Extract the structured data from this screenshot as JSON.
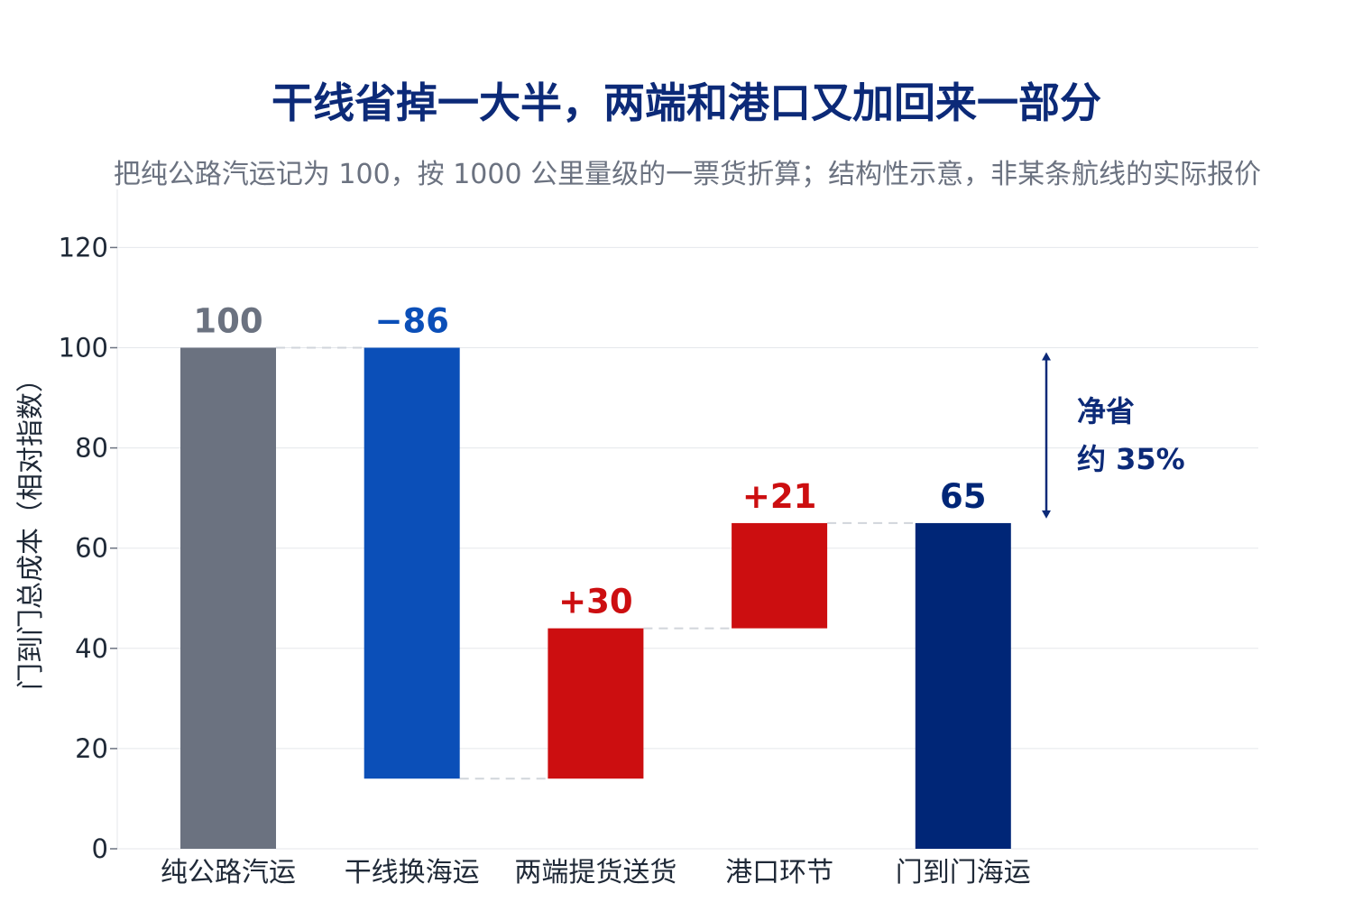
{
  "chart_data": {
    "type": "bar",
    "subtype": "waterfall",
    "title": "干线省掉一大半，两端和港口又加回来一部分",
    "subtitle": "把纯公路汽运记为 100，按 1000 公里量级的一票货折算；结构性示意，非某条航线的实际报价",
    "ylabel": "门到门总成本（相对指数）",
    "xlabel": "",
    "ylim": [
      0,
      130
    ],
    "yticks": [
      0,
      20,
      40,
      60,
      80,
      100,
      120
    ],
    "grid": true,
    "categories": [
      "纯公路汽运",
      "干线换海运",
      "两端提货送货",
      "港口环节",
      "门到门海运"
    ],
    "steps": [
      {
        "category": "纯公路汽运",
        "kind": "total",
        "value": 100,
        "start": 0,
        "end": 100,
        "label": "100",
        "color": "#6b7280"
      },
      {
        "category": "干线换海运",
        "kind": "decrease",
        "value": -86,
        "start": 100,
        "end": 14,
        "label": "−86",
        "color": "#0b4fb8"
      },
      {
        "category": "两端提货送货",
        "kind": "increase",
        "value": 30,
        "start": 14,
        "end": 44,
        "label": "+30",
        "color": "#cc0e10"
      },
      {
        "category": "港口环节",
        "kind": "increase",
        "value": 21,
        "start": 44,
        "end": 65,
        "label": "+21",
        "color": "#cc0e10"
      },
      {
        "category": "门到门海运",
        "kind": "total",
        "value": 65,
        "start": 0,
        "end": 65,
        "label": "65",
        "color": "#002677"
      }
    ],
    "annotation": {
      "line1": "净省",
      "line2": "约 35%",
      "from": 100,
      "to": 65,
      "color": "#0c2a78"
    }
  }
}
